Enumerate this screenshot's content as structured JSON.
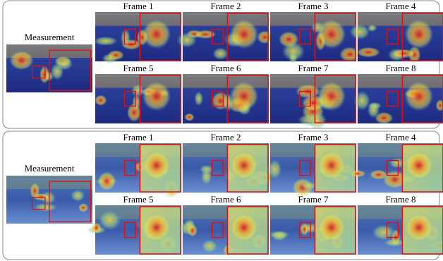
{
  "panels": [
    {
      "measurement": "Measurement",
      "frames": [
        "Frame 1",
        "Frame 2",
        "Frame 3",
        "Frame 4",
        "Frame 5",
        "Frame 6",
        "Frame 7",
        "Frame 8"
      ]
    },
    {
      "measurement": "Measurement",
      "frames": [
        "Frame 1",
        "Frame 2",
        "Frame 3",
        "Frame 4",
        "Frame 5",
        "Frame 6",
        "Frame 7",
        "Frame 8"
      ]
    }
  ]
}
